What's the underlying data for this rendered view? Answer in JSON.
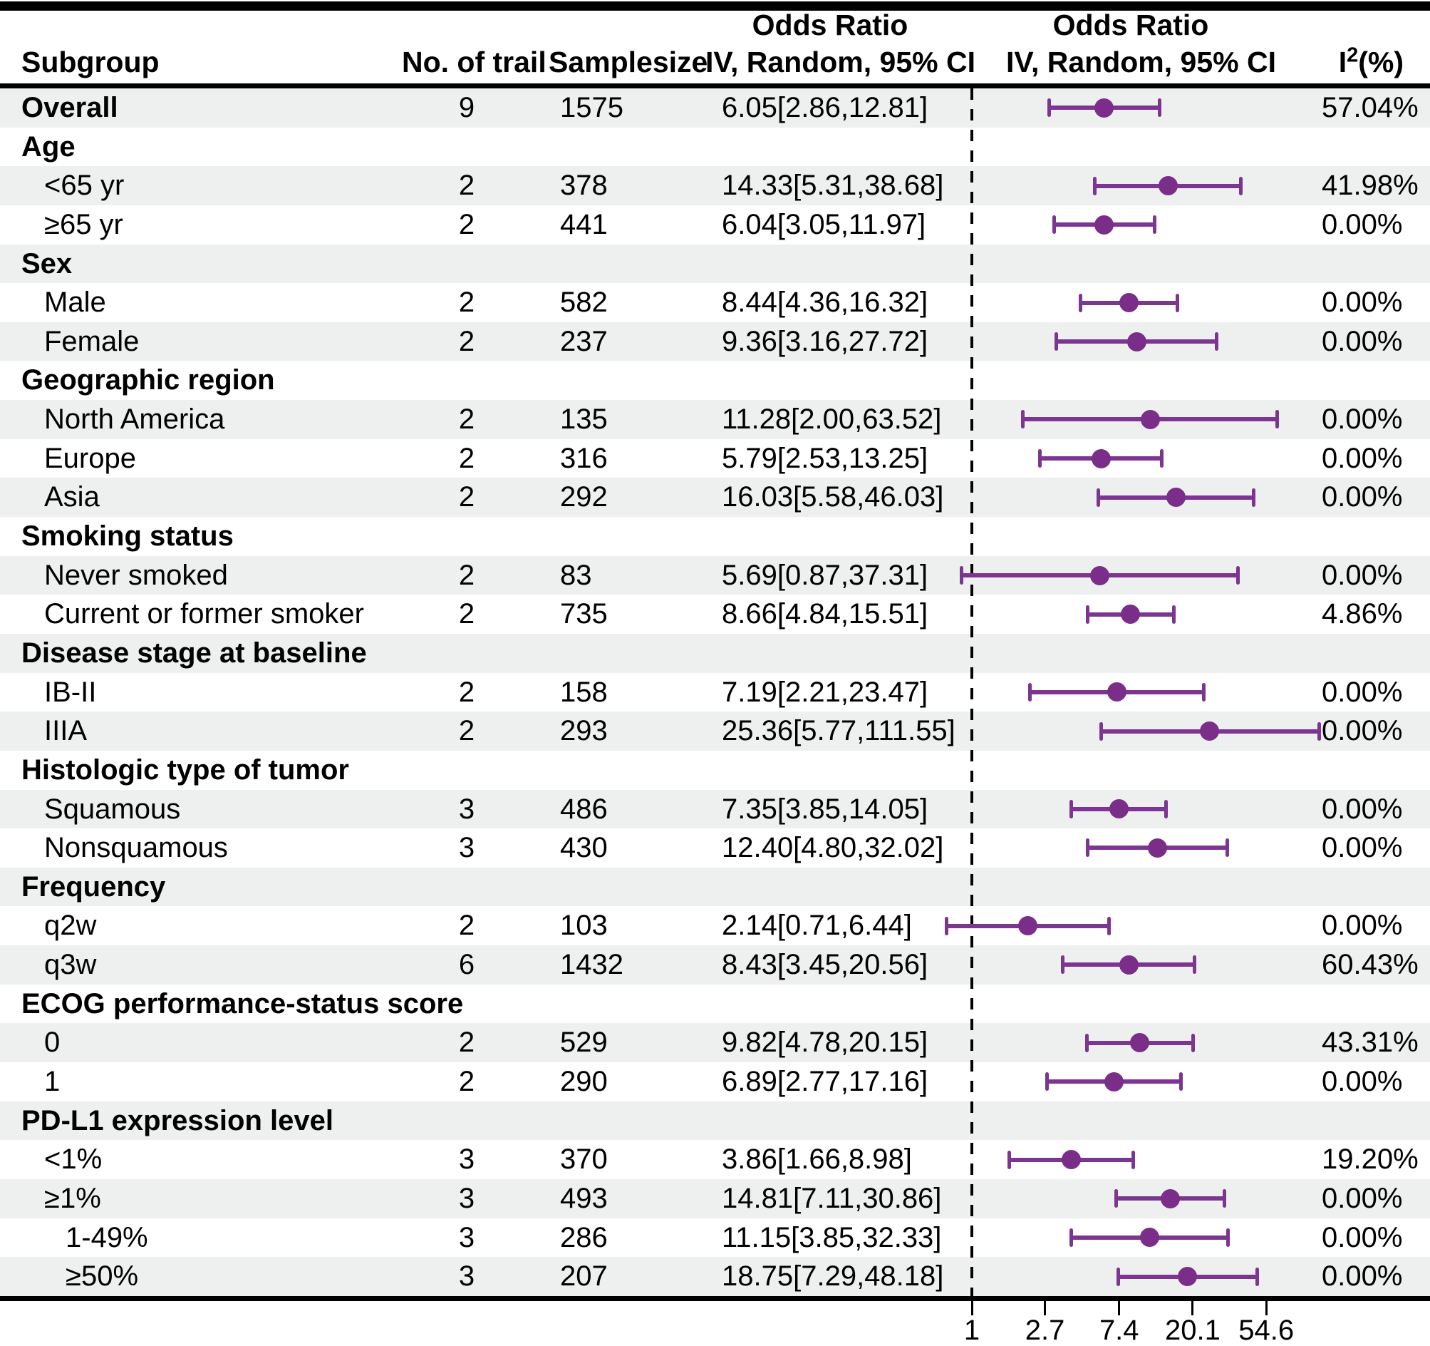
{
  "header": {
    "subgroup": "Subgroup",
    "trials": "No. of trail",
    "samplesize": "Samplesize",
    "or_text_title": "Odds Ratio",
    "or_text_subtitle": "IV, Random, 95% CI",
    "plot_title": "Odds Ratio",
    "plot_subtitle": "IV, Random, 95% CI",
    "i2_base": "I",
    "i2_sup": "2",
    "i2_suffix": "(%)"
  },
  "colors": {
    "marker_fill": "#7B2D8A",
    "whisker": "#7C3591",
    "stripe": "#EDF0EE",
    "rule": "#000000"
  },
  "chart_data": {
    "type": "scatter",
    "variant": "forest-plot",
    "x_scale": "log-e",
    "reference_line": 1,
    "x_ticks": [
      1,
      2.7,
      7.4,
      20.1,
      54.6
    ],
    "legend_position": "none",
    "grid": false,
    "rows": [
      {
        "label": "Overall",
        "indent": 0,
        "bold": true,
        "trials": "9",
        "samplesize": "1575",
        "or_text": "6.05[2.86,12.81]",
        "i2": "57.04%",
        "or": 6.05,
        "lo": 2.86,
        "hi": 12.81
      },
      {
        "label": "Age",
        "indent": 0,
        "bold": true,
        "trials": "",
        "samplesize": "",
        "or_text": "",
        "i2": "",
        "or": null,
        "lo": null,
        "hi": null
      },
      {
        "label": "<65 yr",
        "indent": 1,
        "bold": false,
        "trials": "2",
        "samplesize": "378",
        "or_text": "14.33[5.31,38.68]",
        "i2": "41.98%",
        "or": 14.33,
        "lo": 5.31,
        "hi": 38.68
      },
      {
        "label": "≥65 yr",
        "indent": 1,
        "bold": false,
        "trials": "2",
        "samplesize": "441",
        "or_text": "6.04[3.05,11.97]",
        "i2": "0.00%",
        "or": 6.04,
        "lo": 3.05,
        "hi": 11.97
      },
      {
        "label": "Sex",
        "indent": 0,
        "bold": true,
        "trials": "",
        "samplesize": "",
        "or_text": "",
        "i2": "",
        "or": null,
        "lo": null,
        "hi": null
      },
      {
        "label": "Male",
        "indent": 1,
        "bold": false,
        "trials": "2",
        "samplesize": "582",
        "or_text": "8.44[4.36,16.32]",
        "i2": "0.00%",
        "or": 8.44,
        "lo": 4.36,
        "hi": 16.32
      },
      {
        "label": "Female",
        "indent": 1,
        "bold": false,
        "trials": "2",
        "samplesize": "237",
        "or_text": "9.36[3.16,27.72]",
        "i2": "0.00%",
        "or": 9.36,
        "lo": 3.16,
        "hi": 27.72
      },
      {
        "label": "Geographic region",
        "indent": 0,
        "bold": true,
        "trials": "",
        "samplesize": "",
        "or_text": "",
        "i2": "",
        "or": null,
        "lo": null,
        "hi": null
      },
      {
        "label": "North America",
        "indent": 1,
        "bold": false,
        "trials": "2",
        "samplesize": "135",
        "or_text": "11.28[2.00,63.52]",
        "i2": "0.00%",
        "or": 11.28,
        "lo": 2.0,
        "hi": 63.52
      },
      {
        "label": "Europe",
        "indent": 1,
        "bold": false,
        "trials": "2",
        "samplesize": "316",
        "or_text": "5.79[2.53,13.25]",
        "i2": "0.00%",
        "or": 5.79,
        "lo": 2.53,
        "hi": 13.25
      },
      {
        "label": "Asia",
        "indent": 1,
        "bold": false,
        "trials": "2",
        "samplesize": "292",
        "or_text": "16.03[5.58,46.03]",
        "i2": "0.00%",
        "or": 16.03,
        "lo": 5.58,
        "hi": 46.03
      },
      {
        "label": "Smoking status",
        "indent": 0,
        "bold": true,
        "trials": "",
        "samplesize": "",
        "or_text": "",
        "i2": "",
        "or": null,
        "lo": null,
        "hi": null
      },
      {
        "label": "Never smoked",
        "indent": 1,
        "bold": false,
        "trials": "2",
        "samplesize": "83",
        "or_text": "5.69[0.87,37.31]",
        "i2": "0.00%",
        "or": 5.69,
        "lo": 0.87,
        "hi": 37.31
      },
      {
        "label": "Current or former smoker",
        "indent": 1,
        "bold": false,
        "trials": "2",
        "samplesize": "735",
        "or_text": "8.66[4.84,15.51]",
        "i2": "4.86%",
        "or": 8.66,
        "lo": 4.84,
        "hi": 15.51
      },
      {
        "label": "Disease stage at baseline",
        "indent": 0,
        "bold": true,
        "trials": "",
        "samplesize": "",
        "or_text": "",
        "i2": "",
        "or": null,
        "lo": null,
        "hi": null
      },
      {
        "label": "IB-II",
        "indent": 1,
        "bold": false,
        "trials": "2",
        "samplesize": "158",
        "or_text": "7.19[2.21,23.47]",
        "i2": "0.00%",
        "or": 7.19,
        "lo": 2.21,
        "hi": 23.47
      },
      {
        "label": "IIIA",
        "indent": 1,
        "bold": false,
        "trials": "2",
        "samplesize": "293",
        "or_text": "25.36[5.77,111.55]",
        "i2": "0.00%",
        "or": 25.36,
        "lo": 5.77,
        "hi": 111.55
      },
      {
        "label": "Histologic type of tumor",
        "indent": 0,
        "bold": true,
        "trials": "",
        "samplesize": "",
        "or_text": "",
        "i2": "",
        "or": null,
        "lo": null,
        "hi": null
      },
      {
        "label": "Squamous",
        "indent": 1,
        "bold": false,
        "trials": "3",
        "samplesize": "486",
        "or_text": "7.35[3.85,14.05]",
        "i2": "0.00%",
        "or": 7.35,
        "lo": 3.85,
        "hi": 14.05
      },
      {
        "label": "Nonsquamous",
        "indent": 1,
        "bold": false,
        "trials": "3",
        "samplesize": "430",
        "or_text": "12.40[4.80,32.02]",
        "i2": "0.00%",
        "or": 12.4,
        "lo": 4.8,
        "hi": 32.02
      },
      {
        "label": "Frequency",
        "indent": 0,
        "bold": true,
        "trials": "",
        "samplesize": "",
        "or_text": "",
        "i2": "",
        "or": null,
        "lo": null,
        "hi": null
      },
      {
        "label": "q2w",
        "indent": 1,
        "bold": false,
        "trials": "2",
        "samplesize": "103",
        "or_text": "2.14[0.71,6.44]",
        "i2": "0.00%",
        "or": 2.14,
        "lo": 0.71,
        "hi": 6.44
      },
      {
        "label": "q3w",
        "indent": 1,
        "bold": false,
        "trials": "6",
        "samplesize": "1432",
        "or_text": "8.43[3.45,20.56]",
        "i2": "60.43%",
        "or": 8.43,
        "lo": 3.45,
        "hi": 20.56
      },
      {
        "label": "ECOG performance-status score",
        "indent": 0,
        "bold": true,
        "trials": "",
        "samplesize": "",
        "or_text": "",
        "i2": "",
        "or": null,
        "lo": null,
        "hi": null
      },
      {
        "label": "0",
        "indent": 1,
        "bold": false,
        "trials": "2",
        "samplesize": "529",
        "or_text": "9.82[4.78,20.15]",
        "i2": "43.31%",
        "or": 9.82,
        "lo": 4.78,
        "hi": 20.15
      },
      {
        "label": "1",
        "indent": 1,
        "bold": false,
        "trials": "2",
        "samplesize": "290",
        "or_text": "6.89[2.77,17.16]",
        "i2": "0.00%",
        "or": 6.89,
        "lo": 2.77,
        "hi": 17.16
      },
      {
        "label": "PD-L1 expression level",
        "indent": 0,
        "bold": true,
        "trials": "",
        "samplesize": "",
        "or_text": "",
        "i2": "",
        "or": null,
        "lo": null,
        "hi": null
      },
      {
        "label": "<1%",
        "indent": 1,
        "bold": false,
        "trials": "3",
        "samplesize": "370",
        "or_text": "3.86[1.66,8.98]",
        "i2": "19.20%",
        "or": 3.86,
        "lo": 1.66,
        "hi": 8.98
      },
      {
        "label": "≥1%",
        "indent": 1,
        "bold": false,
        "trials": "3",
        "samplesize": "493",
        "or_text": "14.81[7.11,30.86]",
        "i2": "0.00%",
        "or": 14.81,
        "lo": 7.11,
        "hi": 30.86
      },
      {
        "label": "1-49%",
        "indent": 2,
        "bold": false,
        "trials": "3",
        "samplesize": "286",
        "or_text": "11.15[3.85,32.33]",
        "i2": "0.00%",
        "or": 11.15,
        "lo": 3.85,
        "hi": 32.33
      },
      {
        "label": "≥50%",
        "indent": 2,
        "bold": false,
        "trials": "3",
        "samplesize": "207",
        "or_text": "18.75[7.29,48.18]",
        "i2": "0.00%",
        "or": 18.75,
        "lo": 7.29,
        "hi": 48.18
      }
    ]
  }
}
